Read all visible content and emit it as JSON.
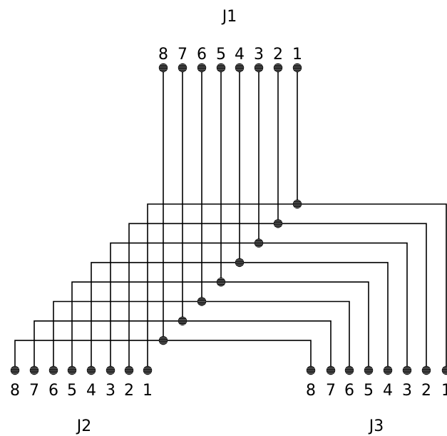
{
  "connectors": {
    "j1": {
      "label": "J1",
      "pins": [
        {
          "number": "8",
          "name": "j1-pin-8"
        },
        {
          "number": "7",
          "name": "j1-pin-7"
        },
        {
          "number": "6",
          "name": "j1-pin-6"
        },
        {
          "number": "5",
          "name": "j1-pin-5"
        },
        {
          "number": "4",
          "name": "j1-pin-4"
        },
        {
          "number": "3",
          "name": "j1-pin-3"
        },
        {
          "number": "2",
          "name": "j1-pin-2"
        },
        {
          "number": "1",
          "name": "j1-pin-1"
        }
      ]
    },
    "j2": {
      "label": "J2",
      "pins": [
        {
          "number": "8",
          "name": "j2-pin-8"
        },
        {
          "number": "7",
          "name": "j2-pin-7"
        },
        {
          "number": "6",
          "name": "j2-pin-6"
        },
        {
          "number": "5",
          "name": "j2-pin-5"
        },
        {
          "number": "4",
          "name": "j2-pin-4"
        },
        {
          "number": "3",
          "name": "j2-pin-3"
        },
        {
          "number": "2",
          "name": "j2-pin-2"
        },
        {
          "number": "1",
          "name": "j2-pin-1"
        }
      ]
    },
    "j3": {
      "label": "J3",
      "pins": [
        {
          "number": "8",
          "name": "j3-pin-8"
        },
        {
          "number": "7",
          "name": "j3-pin-7"
        },
        {
          "number": "6",
          "name": "j3-pin-6"
        },
        {
          "number": "5",
          "name": "j3-pin-5"
        },
        {
          "number": "4",
          "name": "j3-pin-4"
        },
        {
          "number": "3",
          "name": "j3-pin-3"
        },
        {
          "number": "2",
          "name": "j3-pin-2"
        },
        {
          "number": "1",
          "name": "j3-pin-1"
        }
      ]
    }
  },
  "wiring": [
    {
      "j1": "1",
      "j2": "1",
      "j3": "1"
    },
    {
      "j1": "2",
      "j2": "2",
      "j3": "2"
    },
    {
      "j1": "3",
      "j2": "3",
      "j3": "3"
    },
    {
      "j1": "4",
      "j2": "4",
      "j3": "4"
    },
    {
      "j1": "5",
      "j2": "5",
      "j3": "5"
    },
    {
      "j1": "6",
      "j2": "6",
      "j3": "6"
    },
    {
      "j1": "7",
      "j2": "7",
      "j3": "7"
    },
    {
      "j1": "8",
      "j2": "8",
      "j3": "8"
    }
  ]
}
